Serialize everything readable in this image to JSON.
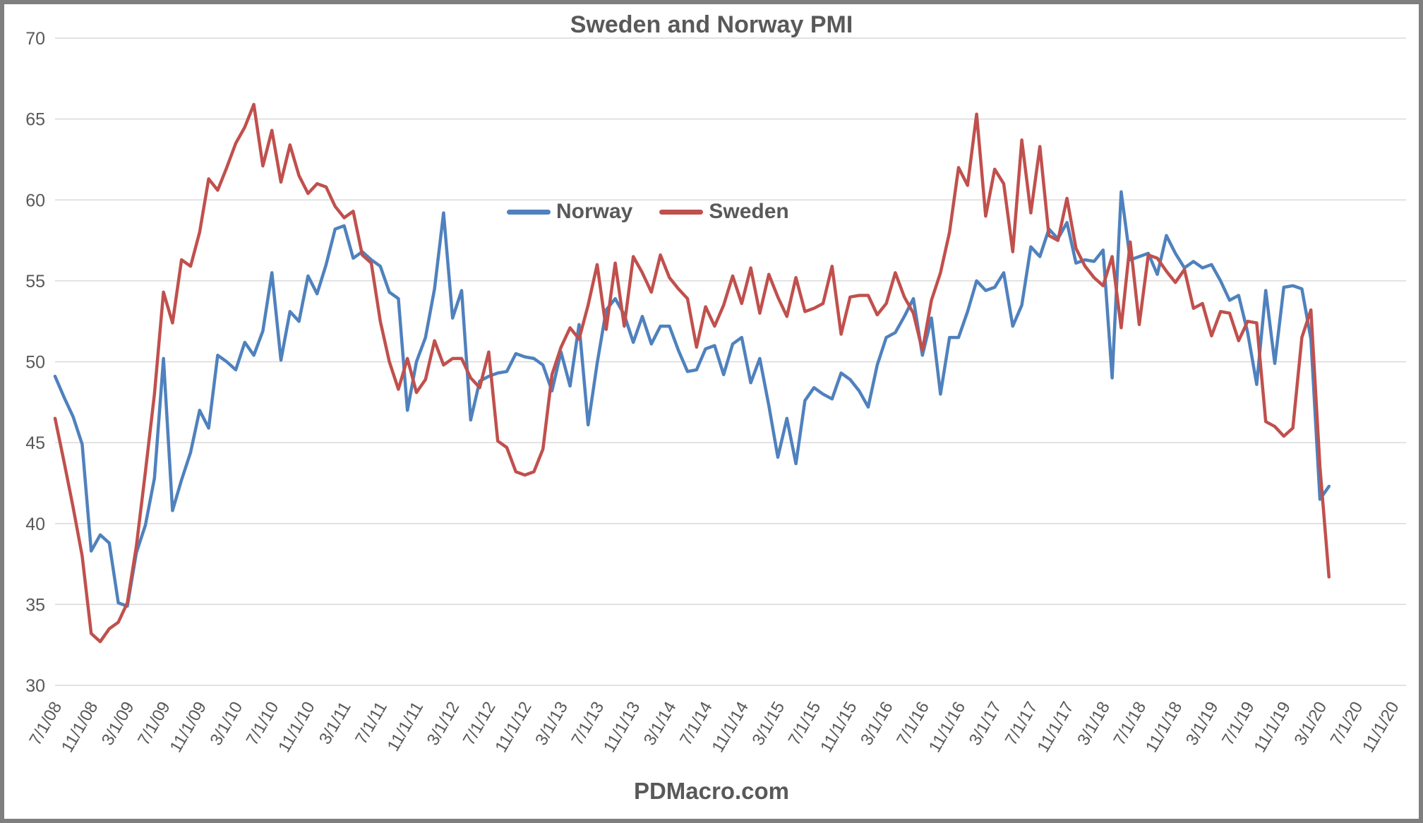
{
  "title": "Sweden and Norway PMI",
  "footer": "PDMacro.com",
  "colors": {
    "norway_line": "#4F81BD",
    "sweden_line": "#C0504D",
    "text": "#595959",
    "gridline": "#D9D9D9",
    "frame_border": "#7F7F7F",
    "background": "#FFFFFF"
  },
  "chart_data": {
    "type": "line",
    "title": "Sweden and Norway PMI",
    "xlabel": "",
    "ylabel": "",
    "ylim": [
      30,
      70
    ],
    "y_ticks": [
      30,
      35,
      40,
      45,
      50,
      55,
      60,
      65,
      70
    ],
    "grid": "horizontal",
    "legend_position": "inside-top-center",
    "x_start": "7/1/08",
    "x_frequency": "monthly",
    "x_axis_months_total": 149,
    "x_tick_every_months": 4,
    "x_tick_labels": [
      "7/1/08",
      "11/1/08",
      "3/1/09",
      "7/1/09",
      "11/1/09",
      "3/1/10",
      "7/1/10",
      "11/1/10",
      "3/1/11",
      "7/1/11",
      "11/1/11",
      "3/1/12",
      "7/1/12",
      "11/1/12",
      "3/1/13",
      "7/1/13",
      "11/1/13",
      "3/1/14",
      "7/1/14",
      "11/1/14",
      "3/1/15",
      "7/1/15",
      "11/1/15",
      "3/1/16",
      "7/1/16",
      "11/1/16",
      "3/1/17",
      "7/1/17",
      "11/1/17",
      "3/1/18",
      "7/1/18",
      "11/1/18",
      "3/1/19",
      "7/1/19",
      "11/1/19",
      "3/1/20",
      "7/1/20",
      "11/1/20"
    ],
    "series": [
      {
        "name": "Norway",
        "color": "#4F81BD",
        "first_point": "7/1/08",
        "last_point": "4/1/20",
        "values": [
          49.1,
          47.8,
          46.6,
          44.9,
          38.3,
          39.3,
          38.8,
          35.1,
          34.9,
          38.2,
          39.9,
          42.8,
          50.2,
          40.8,
          42.7,
          44.4,
          47.0,
          45.9,
          50.4,
          50.0,
          49.5,
          51.2,
          50.4,
          51.9,
          55.5,
          50.1,
          53.1,
          52.5,
          55.3,
          54.2,
          56.0,
          58.2,
          58.4,
          56.4,
          56.8,
          56.3,
          55.9,
          54.3,
          53.9,
          47.0,
          50.0,
          51.5,
          54.5,
          59.2,
          52.7,
          54.4,
          46.4,
          48.8,
          49.1,
          49.3,
          49.4,
          50.5,
          50.3,
          50.2,
          49.8,
          48.2,
          50.6,
          48.5,
          52.3,
          46.1,
          49.9,
          53.2,
          53.9,
          52.9,
          51.2,
          52.8,
          51.1,
          52.2,
          52.2,
          50.7,
          49.4,
          49.5,
          50.8,
          51.0,
          49.2,
          51.1,
          51.5,
          48.7,
          50.2,
          47.3,
          44.1,
          46.5,
          43.7,
          47.6,
          48.4,
          48.0,
          47.7,
          49.3,
          48.9,
          48.2,
          47.2,
          49.8,
          51.5,
          51.8,
          52.8,
          53.9,
          50.4,
          52.7,
          48.0,
          51.5,
          51.5,
          53.1,
          55.0,
          54.4,
          54.6,
          55.5,
          52.2,
          53.5,
          57.1,
          56.5,
          58.2,
          57.6,
          58.6,
          56.1,
          56.3,
          56.2,
          56.9,
          49.0,
          60.5,
          56.3,
          56.5,
          56.7,
          55.4,
          57.8,
          56.7,
          55.8,
          56.2,
          55.8,
          56.0,
          55.0,
          53.8,
          54.1,
          51.8,
          48.6,
          54.4,
          49.9,
          54.6,
          54.7,
          54.5,
          51.4,
          41.5,
          42.3
        ]
      },
      {
        "name": "Sweden",
        "color": "#C0504D",
        "first_point": "7/1/08",
        "last_point": "4/1/20",
        "values": [
          46.5,
          43.8,
          41.0,
          38.0,
          33.2,
          32.7,
          33.5,
          33.9,
          35.1,
          38.6,
          43.2,
          48.0,
          54.3,
          52.4,
          56.3,
          55.9,
          58.0,
          61.3,
          60.6,
          62.0,
          63.5,
          64.5,
          65.9,
          62.1,
          64.3,
          61.1,
          63.4,
          61.5,
          60.4,
          61.0,
          60.8,
          59.6,
          58.9,
          59.3,
          56.6,
          56.1,
          52.5,
          50.0,
          48.3,
          50.2,
          48.1,
          48.9,
          51.3,
          49.8,
          50.2,
          50.2,
          49.0,
          48.4,
          50.6,
          45.1,
          44.7,
          43.2,
          43.0,
          43.2,
          44.6,
          49.2,
          50.9,
          52.1,
          51.4,
          53.5,
          56.0,
          52.0,
          56.1,
          52.2,
          56.5,
          55.5,
          54.3,
          56.6,
          55.2,
          54.5,
          53.9,
          50.9,
          53.4,
          52.2,
          53.5,
          55.3,
          53.6,
          55.8,
          53.0,
          55.4,
          54.0,
          52.8,
          55.2,
          53.1,
          53.3,
          53.6,
          55.9,
          51.7,
          54.0,
          54.1,
          54.1,
          52.9,
          53.6,
          55.5,
          54.0,
          53.0,
          50.7,
          53.8,
          55.5,
          58.0,
          62.0,
          60.9,
          65.3,
          59.0,
          61.9,
          61.0,
          56.8,
          63.7,
          59.2,
          63.3,
          57.8,
          57.5,
          60.1,
          57.0,
          55.9,
          55.2,
          54.7,
          56.5,
          52.1,
          57.4,
          52.3,
          56.6,
          56.4,
          55.6,
          54.9,
          55.7,
          53.3,
          53.6,
          51.6,
          53.1,
          53.0,
          51.3,
          52.5,
          52.4,
          46.3,
          46.0,
          45.4,
          45.9,
          51.5,
          53.2,
          43.5,
          36.7
        ]
      }
    ]
  }
}
